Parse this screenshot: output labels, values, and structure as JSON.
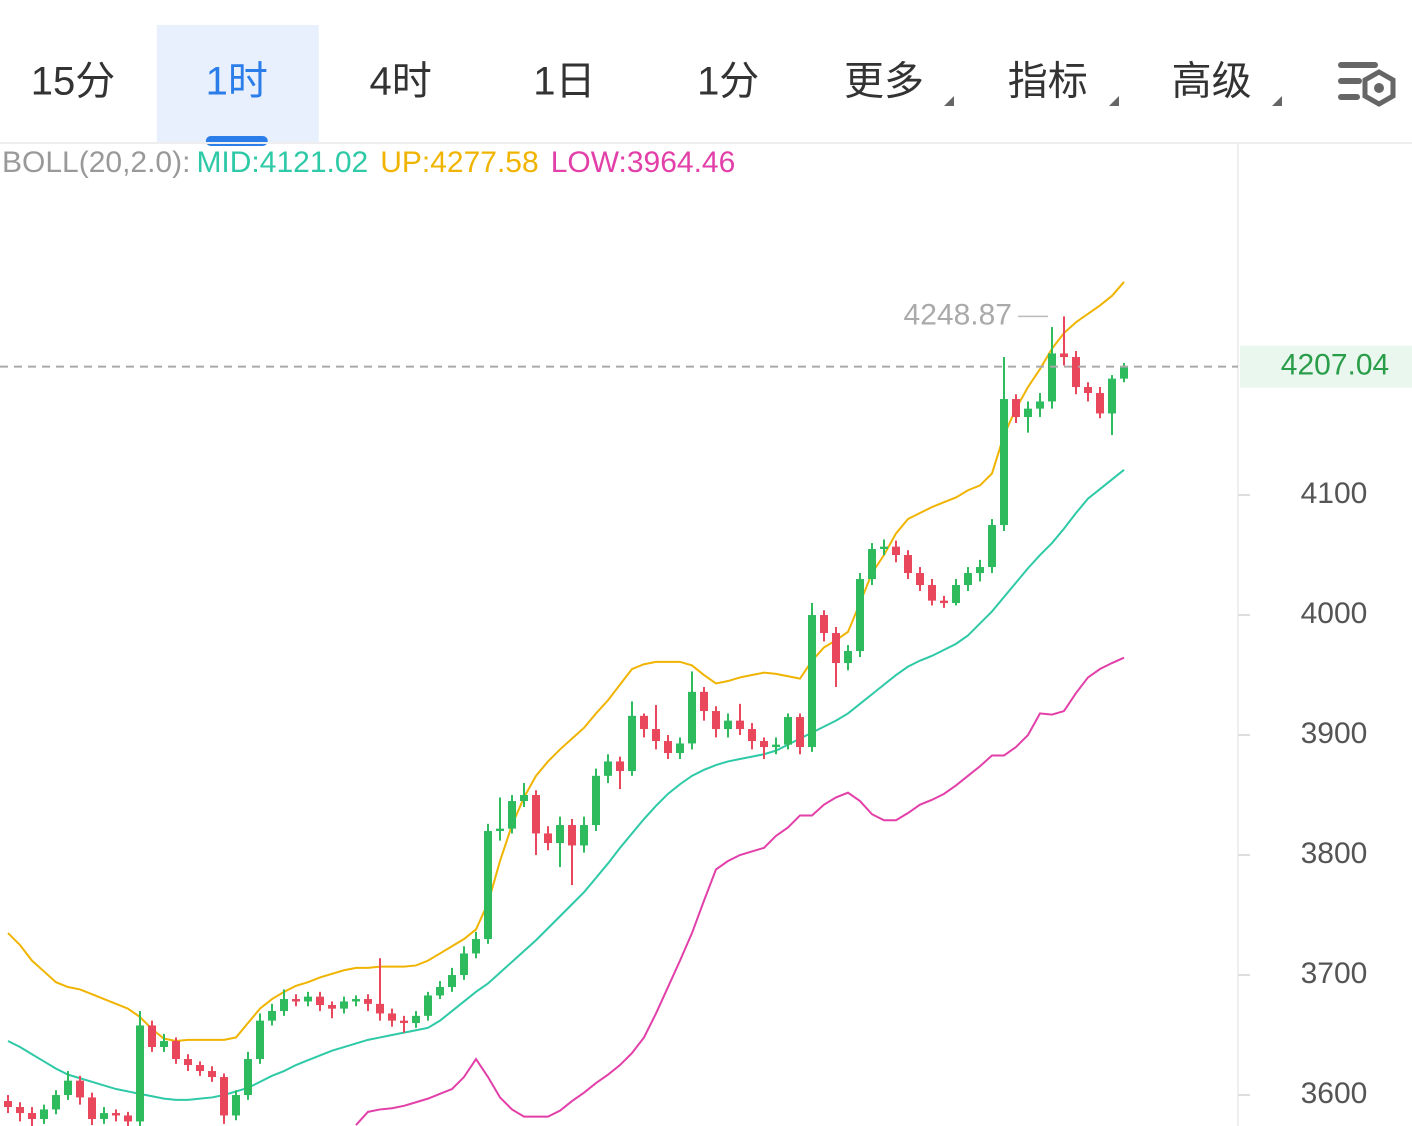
{
  "tabs": {
    "items": [
      "15分",
      "1时",
      "4时",
      "1日",
      "1分",
      "更多",
      "指标",
      "高级"
    ],
    "active": 1
  },
  "chart_data": {
    "type": "candlestick",
    "indicator": "BOLL(20,2.0):",
    "ylim": [
      3574.2,
      4391.7
    ],
    "yticks": [
      3600,
      3700,
      3800,
      3900,
      4000,
      4100
    ],
    "up_color": "#2dbb5e",
    "down_color": "#e8475c",
    "open": [
      3595,
      3590,
      3585,
      3580,
      3588,
      3600,
      3612,
      3598,
      3580,
      3585,
      3583,
      3578,
      3658,
      3640,
      3645,
      3630,
      3625,
      3620,
      3615,
      3583,
      3600,
      3630,
      3662,
      3670,
      3680,
      3678,
      3682,
      3675,
      3672,
      3678,
      3680,
      3676,
      3668,
      3662,
      3660,
      3666,
      3683,
      3690,
      3700,
      3718,
      3730,
      3820,
      3822,
      3845,
      3850,
      3818,
      3810,
      3825,
      3808,
      3825,
      3866,
      3878,
      3870,
      3916,
      3905,
      3895,
      3885,
      3893,
      3936,
      3920,
      3905,
      3912,
      3905,
      3895,
      3890,
      3892,
      3915,
      3890,
      4000,
      3985,
      3960,
      3970,
      4030,
      4055,
      4057,
      4050,
      4035,
      4025,
      4012,
      4010,
      4025,
      4035,
      4040,
      4075,
      4180,
      4165,
      4172,
      4178,
      4218,
      4215,
      4190,
      4185,
      4168,
      4197
    ],
    "high": [
      3600,
      3594,
      3590,
      3592,
      3604,
      3620,
      3616,
      3602,
      3590,
      3588,
      3586,
      3670,
      3662,
      3651,
      3648,
      3634,
      3628,
      3624,
      3618,
      3604,
      3636,
      3668,
      3676,
      3688,
      3684,
      3686,
      3686,
      3678,
      3682,
      3683,
      3684,
      3714,
      3672,
      3666,
      3670,
      3686,
      3695,
      3706,
      3724,
      3736,
      3826,
      3848,
      3850,
      3860,
      3854,
      3824,
      3832,
      3830,
      3832,
      3872,
      3884,
      3882,
      3928,
      3918,
      3925,
      3900,
      3898,
      3953,
      3940,
      3924,
      3918,
      3926,
      3910,
      3898,
      3898,
      3918,
      3918,
      4010,
      4004,
      3990,
      3975,
      4035,
      4060,
      4063,
      4062,
      4054,
      4040,
      4030,
      4016,
      4030,
      4040,
      4046,
      4080,
      4215,
      4184,
      4178,
      4185,
      4240,
      4248.87,
      4220,
      4194,
      4190,
      4200,
      4210
    ],
    "low": [
      3585,
      3578,
      3574,
      3576,
      3584,
      3596,
      3592,
      3575,
      3576,
      3578,
      3574,
      3574,
      3636,
      3636,
      3626,
      3620,
      3616,
      3611,
      3576,
      3579,
      3596,
      3626,
      3658,
      3666,
      3674,
      3674,
      3670,
      3664,
      3668,
      3674,
      3670,
      3662,
      3657,
      3652,
      3656,
      3662,
      3680,
      3686,
      3696,
      3714,
      3726,
      3812,
      3818,
      3840,
      3800,
      3804,
      3790,
      3775,
      3802,
      3820,
      3860,
      3855,
      3866,
      3898,
      3888,
      3880,
      3880,
      3888,
      3912,
      3898,
      3898,
      3900,
      3888,
      3880,
      3884,
      3888,
      3884,
      3886,
      3978,
      3940,
      3954,
      3965,
      4025,
      4050,
      4044,
      4030,
      4020,
      4008,
      4006,
      4008,
      4020,
      4028,
      4035,
      4070,
      4160,
      4152,
      4165,
      4172,
      4208,
      4184,
      4178,
      4164,
      4150,
      4194
    ],
    "close": [
      3590,
      3585,
      3580,
      3588,
      3600,
      3612,
      3598,
      3580,
      3585,
      3583,
      3578,
      3658,
      3640,
      3645,
      3630,
      3625,
      3620,
      3615,
      3583,
      3600,
      3630,
      3662,
      3670,
      3680,
      3678,
      3682,
      3675,
      3672,
      3678,
      3680,
      3676,
      3668,
      3662,
      3660,
      3666,
      3683,
      3690,
      3700,
      3718,
      3730,
      3820,
      3822,
      3845,
      3850,
      3818,
      3810,
      3825,
      3808,
      3825,
      3866,
      3878,
      3870,
      3916,
      3905,
      3895,
      3885,
      3893,
      3936,
      3920,
      3905,
      3912,
      3905,
      3895,
      3890,
      3892,
      3915,
      3890,
      4000,
      3985,
      3960,
      3970,
      4030,
      4055,
      4057,
      4050,
      4035,
      4025,
      4012,
      4010,
      4025,
      4035,
      4040,
      4075,
      4180,
      4165,
      4172,
      4178,
      4218,
      4215,
      4190,
      4185,
      4168,
      4197,
      4207.04
    ],
    "series": [
      {
        "name": "MID:",
        "color": "#2ec9a6",
        "values": [
          3645,
          3640,
          3634,
          3628,
          3622,
          3617,
          3614,
          3611,
          3608,
          3605,
          3603,
          3601,
          3599,
          3597,
          3596,
          3596,
          3597,
          3598,
          3600,
          3603,
          3606,
          3611,
          3616,
          3620,
          3625,
          3629,
          3633,
          3637,
          3640,
          3643,
          3646,
          3648,
          3650,
          3652,
          3654,
          3656,
          3662,
          3670,
          3678,
          3686,
          3693,
          3702,
          3711,
          3720,
          3729,
          3739,
          3749,
          3759,
          3769,
          3781,
          3793,
          3806,
          3818,
          3830,
          3841,
          3851,
          3859,
          3866,
          3871,
          3875,
          3878,
          3880,
          3882,
          3884,
          3887,
          3892,
          3897,
          3902,
          3907,
          3912,
          3918,
          3926,
          3934,
          3942,
          3950,
          3957,
          3962,
          3966,
          3971,
          3976,
          3983,
          3993,
          4003,
          4015,
          4027,
          4039,
          4050,
          4060,
          4072,
          4085,
          4097,
          4105,
          4113,
          4121.02
        ]
      },
      {
        "name": "UP:",
        "color": "#f0b400",
        "values": [
          3735,
          3725,
          3712,
          3703,
          3694,
          3690,
          3688,
          3684,
          3680,
          3676,
          3672,
          3665,
          3655,
          3647,
          3645,
          3646,
          3646,
          3646,
          3646,
          3648,
          3660,
          3672,
          3680,
          3686,
          3691,
          3694,
          3698,
          3701,
          3704,
          3706,
          3706,
          3707,
          3707,
          3707,
          3708,
          3712,
          3718,
          3724,
          3730,
          3738,
          3760,
          3795,
          3825,
          3848,
          3866,
          3878,
          3888,
          3897,
          3906,
          3918,
          3929,
          3942,
          3955,
          3959,
          3961,
          3961,
          3961,
          3958,
          3950,
          3943,
          3945,
          3948,
          3950,
          3952,
          3951,
          3949,
          3947,
          3962,
          3973,
          3979,
          3986,
          4010,
          4035,
          4050,
          4068,
          4080,
          4085,
          4090,
          4094,
          4098,
          4104,
          4108,
          4118,
          4150,
          4172,
          4190,
          4205,
          4222,
          4235,
          4244,
          4251,
          4258,
          4266,
          4277.58
        ]
      },
      {
        "name": "LOW:",
        "color": "#e23fa9",
        "values": [
          null,
          null,
          null,
          null,
          null,
          null,
          null,
          null,
          null,
          null,
          null,
          null,
          null,
          null,
          null,
          null,
          null,
          null,
          null,
          null,
          null,
          null,
          null,
          null,
          null,
          null,
          null,
          null,
          null,
          3575,
          3586,
          3588,
          3589,
          3591,
          3594,
          3597,
          3601,
          3605,
          3615,
          3630,
          3615,
          3598,
          3588,
          3582,
          3582,
          3582,
          3587,
          3595,
          3602,
          3610,
          3617,
          3625,
          3635,
          3648,
          3668,
          3690,
          3712,
          3735,
          3762,
          3788,
          3795,
          3800,
          3803,
          3806,
          3816,
          3823,
          3833,
          3833,
          3842,
          3848,
          3852,
          3845,
          3834,
          3829,
          3829,
          3835,
          3842,
          3846,
          3851,
          3858,
          3866,
          3874,
          3883,
          3883,
          3890,
          3900,
          3918,
          3917,
          3920,
          3935,
          3948,
          3955,
          3960,
          3964.46
        ]
      }
    ]
  }
}
